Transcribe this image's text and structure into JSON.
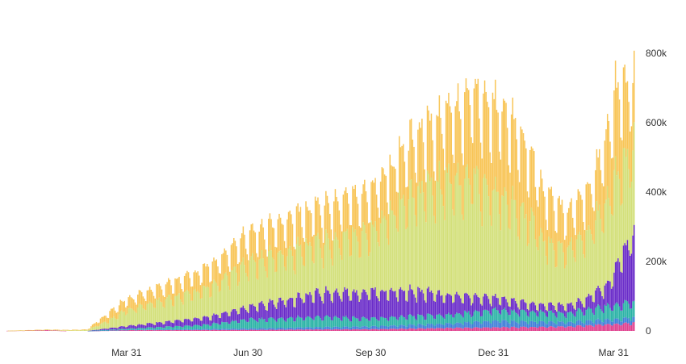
{
  "chart_data": {
    "type": "bar",
    "stacked": true,
    "x_axis": {
      "ticks": [
        {
          "label": "Mar 31",
          "day": 90
        },
        {
          "label": "Jun 30",
          "day": 181
        },
        {
          "label": "Sep 30",
          "day": 273
        },
        {
          "label": "Dec 31",
          "day": 365
        },
        {
          "label": "Mar 31",
          "day": 455
        }
      ],
      "first_day": 0,
      "last_day": 470
    },
    "y_axis": {
      "position": "right",
      "ticks": [
        {
          "label": "0",
          "value": 0
        },
        {
          "label": "200k",
          "value": 200000
        },
        {
          "label": "400k",
          "value": 400000
        },
        {
          "label": "600k",
          "value": 600000
        },
        {
          "label": "800k",
          "value": 800000
        }
      ],
      "ylim": [
        0,
        860000
      ]
    },
    "grid": false,
    "legend": "none",
    "series_colors": [
      "#e0418f",
      "#3f7fd8",
      "#2bb3a6",
      "#6a2cc9",
      "#d3e07a",
      "#f8c557"
    ],
    "keypoints_note_free": true,
    "series": [
      {
        "color": "#e0418f",
        "keypoints": [
          [
            0,
            300
          ],
          [
            30,
            2000
          ],
          [
            45,
            0
          ],
          [
            60,
            0
          ],
          [
            90,
            2000
          ],
          [
            181,
            3000
          ],
          [
            273,
            5000
          ],
          [
            365,
            10000
          ],
          [
            420,
            12000
          ],
          [
            470,
            22000
          ]
        ]
      },
      {
        "color": "#3f7fd8",
        "keypoints": [
          [
            0,
            0
          ],
          [
            60,
            0
          ],
          [
            90,
            1000
          ],
          [
            181,
            4000
          ],
          [
            273,
            8000
          ],
          [
            330,
            12000
          ],
          [
            365,
            18000
          ],
          [
            420,
            12000
          ],
          [
            470,
            15000
          ]
        ]
      },
      {
        "color": "#2bb3a6",
        "keypoints": [
          [
            0,
            0
          ],
          [
            60,
            0
          ],
          [
            90,
            3000
          ],
          [
            150,
            12000
          ],
          [
            181,
            25000
          ],
          [
            240,
            28000
          ],
          [
            273,
            22000
          ],
          [
            330,
            25000
          ],
          [
            365,
            30000
          ],
          [
            420,
            25000
          ],
          [
            470,
            45000
          ]
        ]
      },
      {
        "color": "#6a2cc9",
        "keypoints": [
          [
            0,
            0
          ],
          [
            60,
            0
          ],
          [
            90,
            8000
          ],
          [
            150,
            20000
          ],
          [
            181,
            35000
          ],
          [
            240,
            70000
          ],
          [
            273,
            75000
          ],
          [
            300,
            72000
          ],
          [
            330,
            55000
          ],
          [
            365,
            35000
          ],
          [
            400,
            20000
          ],
          [
            430,
            25000
          ],
          [
            450,
            60000
          ],
          [
            470,
            200000
          ]
        ]
      },
      {
        "color": "#d3e07a",
        "keypoints": [
          [
            0,
            0
          ],
          [
            60,
            2000
          ],
          [
            75,
            20000
          ],
          [
            90,
            45000
          ],
          [
            150,
            80000
          ],
          [
            181,
            120000
          ],
          [
            240,
            140000
          ],
          [
            273,
            170000
          ],
          [
            300,
            260000
          ],
          [
            330,
            320000
          ],
          [
            350,
            340000
          ],
          [
            365,
            300000
          ],
          [
            390,
            240000
          ],
          [
            410,
            150000
          ],
          [
            430,
            170000
          ],
          [
            455,
            250000
          ],
          [
            470,
            250000
          ]
        ]
      },
      {
        "color": "#f8c557",
        "keypoints": [
          [
            0,
            0
          ],
          [
            60,
            2000
          ],
          [
            75,
            20000
          ],
          [
            90,
            30000
          ],
          [
            150,
            55000
          ],
          [
            181,
            80000
          ],
          [
            240,
            100000
          ],
          [
            273,
            110000
          ],
          [
            300,
            140000
          ],
          [
            330,
            190000
          ],
          [
            350,
            230000
          ],
          [
            365,
            250000
          ],
          [
            385,
            210000
          ],
          [
            400,
            140000
          ],
          [
            420,
            100000
          ],
          [
            440,
            120000
          ],
          [
            455,
            230000
          ],
          [
            470,
            190000
          ]
        ]
      }
    ]
  }
}
